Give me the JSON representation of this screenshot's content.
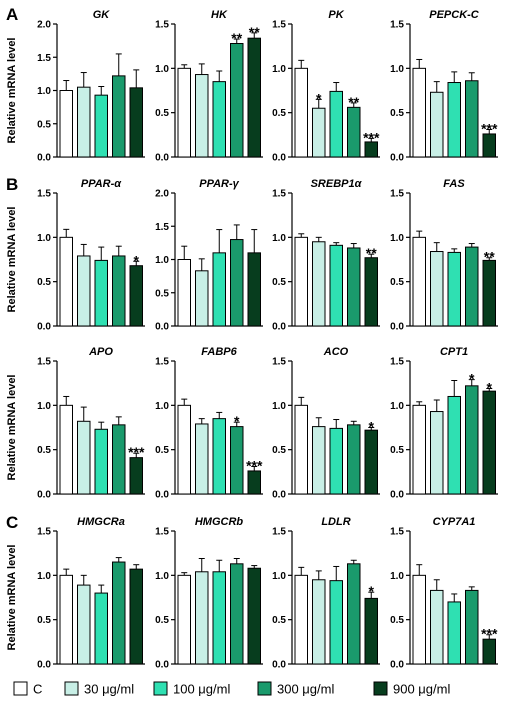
{
  "figure": {
    "legend": [
      {
        "label": "C",
        "color": "#ffffff"
      },
      {
        "label": "30 μg/ml",
        "color": "#c8efe6"
      },
      {
        "label": "100 μg/ml",
        "color": "#2fe0b2"
      },
      {
        "label": "300 μg/ml",
        "color": "#1a9a6c"
      },
      {
        "label": "900 μg/ml",
        "color": "#073d1e"
      }
    ],
    "y_axis_label": "Relative mRNA level",
    "panel_letters": [
      "A",
      "B",
      "C"
    ]
  },
  "chart_data": [
    {
      "type": "bar",
      "panel": "A",
      "title": "GK",
      "ylim": [
        0,
        2.0
      ],
      "yticks": [
        "0.0",
        "0.5",
        "1.0",
        "1.5",
        "2.0"
      ],
      "ylabel": "Relative mRNA level",
      "categories": [
        "C",
        "30 μg/ml",
        "100 μg/ml",
        "300 μg/ml",
        "900 μg/ml"
      ],
      "values": [
        1.0,
        1.05,
        0.93,
        1.22,
        1.04
      ],
      "errors": [
        0.15,
        0.22,
        0.13,
        0.33,
        0.27
      ],
      "annotations": [
        "",
        "",
        "",
        "",
        ""
      ]
    },
    {
      "type": "bar",
      "panel": "A",
      "title": "HK",
      "ylim": [
        0,
        1.5
      ],
      "yticks": [
        "0.0",
        "0.5",
        "1.0",
        "1.5"
      ],
      "ylabel": "",
      "categories": [
        "C",
        "30 μg/ml",
        "100 μg/ml",
        "300 μg/ml",
        "900 μg/ml"
      ],
      "values": [
        1.0,
        0.93,
        0.85,
        1.28,
        1.34
      ],
      "errors": [
        0.04,
        0.12,
        0.12,
        0.05,
        0.06
      ],
      "annotations": [
        "",
        "",
        "",
        "**",
        "**"
      ]
    },
    {
      "type": "bar",
      "panel": "A",
      "title": "PK",
      "ylim": [
        0,
        1.5
      ],
      "yticks": [
        "0.0",
        "0.5",
        "1.0",
        "1.5"
      ],
      "ylabel": "",
      "categories": [
        "C",
        "30 μg/ml",
        "100 μg/ml",
        "300 μg/ml",
        "900 μg/ml"
      ],
      "values": [
        1.0,
        0.55,
        0.74,
        0.56,
        0.17
      ],
      "errors": [
        0.09,
        0.1,
        0.1,
        0.05,
        0.04
      ],
      "annotations": [
        "",
        "*",
        "",
        "**",
        "***"
      ]
    },
    {
      "type": "bar",
      "panel": "A",
      "title": "PEPCK-C",
      "ylim": [
        0,
        1.5
      ],
      "yticks": [
        "0.0",
        "0.5",
        "1.0",
        "1.5"
      ],
      "ylabel": "",
      "categories": [
        "C",
        "30 μg/ml",
        "100 μg/ml",
        "300 μg/ml",
        "900 μg/ml"
      ],
      "values": [
        1.0,
        0.73,
        0.84,
        0.86,
        0.26
      ],
      "errors": [
        0.1,
        0.12,
        0.12,
        0.09,
        0.05
      ],
      "annotations": [
        "",
        "",
        "",
        "",
        "***"
      ]
    },
    {
      "type": "bar",
      "panel": "B",
      "title": "PPAR-α",
      "ylim": [
        0,
        1.5
      ],
      "yticks": [
        "0.0",
        "0.5",
        "1.0",
        "1.5"
      ],
      "ylabel": "Relative mRNA level",
      "categories": [
        "C",
        "30 μg/ml",
        "100 μg/ml",
        "300 μg/ml",
        "900 μg/ml"
      ],
      "values": [
        1.0,
        0.79,
        0.74,
        0.79,
        0.68
      ],
      "errors": [
        0.09,
        0.13,
        0.15,
        0.11,
        0.05
      ],
      "annotations": [
        "",
        "",
        "",
        "",
        "*"
      ]
    },
    {
      "type": "bar",
      "panel": "B",
      "title": "PPAR-γ",
      "ylim": [
        0,
        2.0
      ],
      "yticks": [
        "0.0",
        "0.5",
        "1.0",
        "1.5",
        "2.0"
      ],
      "ylabel": "",
      "categories": [
        "C",
        "30 μg/ml",
        "100 μg/ml",
        "300 μg/ml",
        "900 μg/ml"
      ],
      "values": [
        1.0,
        0.83,
        1.1,
        1.3,
        1.1
      ],
      "errors": [
        0.2,
        0.18,
        0.35,
        0.22,
        0.35
      ],
      "annotations": [
        "",
        "",
        "",
        "",
        ""
      ]
    },
    {
      "type": "bar",
      "panel": "B",
      "title": "SREBP1α",
      "ylim": [
        0,
        1.5
      ],
      "yticks": [
        "0.0",
        "0.5",
        "1.0",
        "1.5"
      ],
      "ylabel": "",
      "categories": [
        "C",
        "30 μg/ml",
        "100 μg/ml",
        "300 μg/ml",
        "900 μg/ml"
      ],
      "values": [
        1.0,
        0.95,
        0.91,
        0.88,
        0.77
      ],
      "errors": [
        0.04,
        0.05,
        0.03,
        0.05,
        0.04
      ],
      "annotations": [
        "",
        "",
        "",
        "",
        "**"
      ]
    },
    {
      "type": "bar",
      "panel": "B",
      "title": "FAS",
      "ylim": [
        0,
        1.5
      ],
      "yticks": [
        "0.0",
        "0.5",
        "1.0",
        "1.5"
      ],
      "ylabel": "",
      "categories": [
        "C",
        "30 μg/ml",
        "100 μg/ml",
        "300 μg/ml",
        "900 μg/ml"
      ],
      "values": [
        1.0,
        0.84,
        0.83,
        0.89,
        0.74
      ],
      "errors": [
        0.07,
        0.1,
        0.04,
        0.04,
        0.03
      ],
      "annotations": [
        "",
        "",
        "",
        "",
        "**"
      ]
    },
    {
      "type": "bar",
      "panel": "B",
      "title": "APO",
      "ylim": [
        0,
        1.5
      ],
      "yticks": [
        "0.0",
        "0.5",
        "1.0",
        "1.5"
      ],
      "ylabel": "Relative mRNA level",
      "categories": [
        "C",
        "30 μg/ml",
        "100 μg/ml",
        "300 μg/ml",
        "900 μg/ml"
      ],
      "values": [
        1.0,
        0.82,
        0.73,
        0.78,
        0.41
      ],
      "errors": [
        0.1,
        0.16,
        0.08,
        0.09,
        0.05
      ],
      "annotations": [
        "",
        "",
        "",
        "",
        "***"
      ]
    },
    {
      "type": "bar",
      "panel": "B",
      "title": "FABP6",
      "ylim": [
        0,
        1.5
      ],
      "yticks": [
        "0.0",
        "0.5",
        "1.0",
        "1.5"
      ],
      "ylabel": "",
      "categories": [
        "C",
        "30 μg/ml",
        "100 μg/ml",
        "300 μg/ml",
        "900 μg/ml"
      ],
      "values": [
        1.0,
        0.79,
        0.85,
        0.76,
        0.26
      ],
      "errors": [
        0.07,
        0.06,
        0.07,
        0.05,
        0.05
      ],
      "annotations": [
        "",
        "",
        "",
        "*",
        "***"
      ]
    },
    {
      "type": "bar",
      "panel": "B",
      "title": "ACO",
      "ylim": [
        0,
        1.5
      ],
      "yticks": [
        "0.0",
        "0.5",
        "1.0",
        "1.5"
      ],
      "ylabel": "",
      "categories": [
        "C",
        "30 μg/ml",
        "100 μg/ml",
        "300 μg/ml",
        "900 μg/ml"
      ],
      "values": [
        1.0,
        0.76,
        0.74,
        0.78,
        0.72
      ],
      "errors": [
        0.09,
        0.1,
        0.1,
        0.04,
        0.03
      ],
      "annotations": [
        "",
        "",
        "",
        "",
        "*"
      ]
    },
    {
      "type": "bar",
      "panel": "B",
      "title": "CPT1",
      "ylim": [
        0,
        1.5
      ],
      "yticks": [
        "0.0",
        "0.5",
        "1.0",
        "1.5"
      ],
      "ylabel": "",
      "categories": [
        "C",
        "30 μg/ml",
        "100 μg/ml",
        "300 μg/ml",
        "900 μg/ml"
      ],
      "values": [
        1.0,
        0.93,
        1.1,
        1.22,
        1.16
      ],
      "errors": [
        0.04,
        0.13,
        0.18,
        0.07,
        0.03
      ],
      "annotations": [
        "",
        "",
        "",
        "*",
        "*"
      ]
    },
    {
      "type": "bar",
      "panel": "C",
      "title": "HMGCRa",
      "ylim": [
        0,
        1.5
      ],
      "yticks": [
        "0.0",
        "0.5",
        "1.0",
        "1.5"
      ],
      "ylabel": "Relative mRNA level",
      "categories": [
        "C",
        "30 μg/ml",
        "100 μg/ml",
        "300 μg/ml",
        "900 μg/ml"
      ],
      "values": [
        1.0,
        0.89,
        0.8,
        1.15,
        1.07
      ],
      "errors": [
        0.07,
        0.11,
        0.09,
        0.05,
        0.05
      ],
      "annotations": [
        "",
        "",
        "",
        "",
        ""
      ]
    },
    {
      "type": "bar",
      "panel": "C",
      "title": "HMGCRb",
      "ylim": [
        0,
        1.5
      ],
      "yticks": [
        "0.0",
        "0.5",
        "1.0",
        "1.5"
      ],
      "ylabel": "",
      "categories": [
        "C",
        "30 μg/ml",
        "100 μg/ml",
        "300 μg/ml",
        "900 μg/ml"
      ],
      "values": [
        1.0,
        1.04,
        1.04,
        1.13,
        1.08
      ],
      "errors": [
        0.03,
        0.15,
        0.13,
        0.06,
        0.03
      ],
      "annotations": [
        "",
        "",
        "",
        "",
        ""
      ]
    },
    {
      "type": "bar",
      "panel": "C",
      "title": "LDLR",
      "ylim": [
        0,
        1.5
      ],
      "yticks": [
        "0.0",
        "0.5",
        "1.0",
        "1.5"
      ],
      "ylabel": "",
      "categories": [
        "C",
        "30 μg/ml",
        "100 μg/ml",
        "300 μg/ml",
        "900 μg/ml"
      ],
      "values": [
        1.0,
        0.95,
        0.94,
        1.13,
        0.74
      ],
      "errors": [
        0.09,
        0.1,
        0.16,
        0.04,
        0.07
      ],
      "annotations": [
        "",
        "",
        "",
        "",
        "*"
      ]
    },
    {
      "type": "bar",
      "panel": "C",
      "title": "CYP7A1",
      "ylim": [
        0,
        1.5
      ],
      "yticks": [
        "0.0",
        "0.5",
        "1.0",
        "1.5"
      ],
      "ylabel": "",
      "categories": [
        "C",
        "30 μg/ml",
        "100 μg/ml",
        "300 μg/ml",
        "900 μg/ml"
      ],
      "values": [
        1.0,
        0.83,
        0.7,
        0.83,
        0.28
      ],
      "errors": [
        0.12,
        0.12,
        0.09,
        0.04,
        0.05
      ],
      "annotations": [
        "",
        "",
        "",
        "",
        "***"
      ]
    }
  ]
}
